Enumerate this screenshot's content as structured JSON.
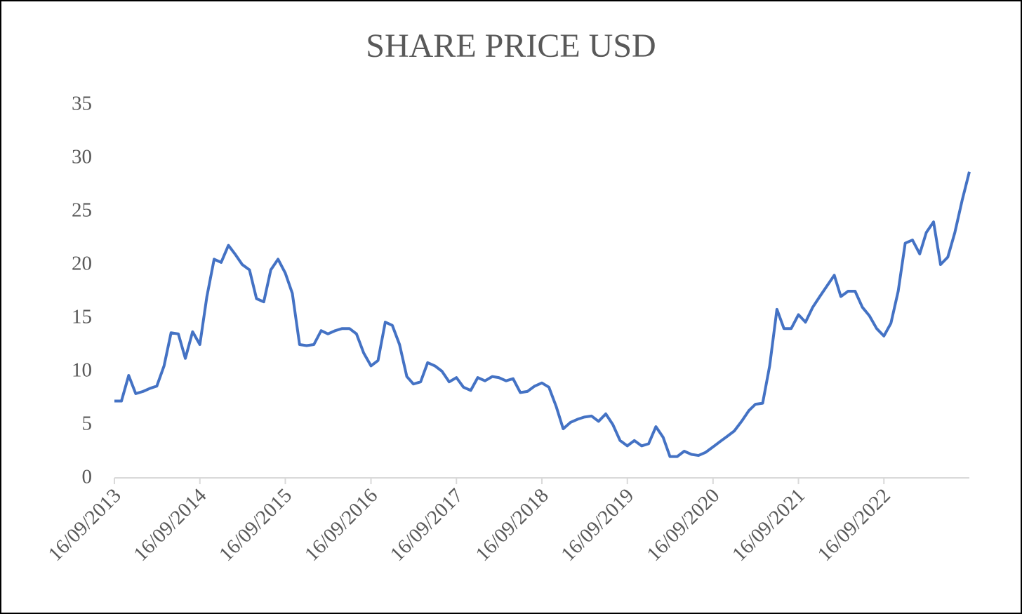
{
  "chart_data": {
    "type": "line",
    "title": "SHARE PRICE USD",
    "x": [
      "16/09/2013",
      "16/10/2013",
      "16/11/2013",
      "16/12/2013",
      "16/01/2014",
      "16/02/2014",
      "16/03/2014",
      "16/04/2014",
      "16/05/2014",
      "16/06/2014",
      "16/07/2014",
      "16/08/2014",
      "16/09/2014",
      "16/10/2014",
      "16/11/2014",
      "16/12/2014",
      "16/01/2015",
      "16/02/2015",
      "16/03/2015",
      "16/04/2015",
      "16/05/2015",
      "16/06/2015",
      "16/07/2015",
      "16/08/2015",
      "16/09/2015",
      "16/10/2015",
      "16/11/2015",
      "16/12/2015",
      "16/01/2016",
      "16/02/2016",
      "16/03/2016",
      "16/04/2016",
      "16/05/2016",
      "16/06/2016",
      "16/07/2016",
      "16/08/2016",
      "16/09/2016",
      "16/10/2016",
      "16/11/2016",
      "16/12/2016",
      "16/01/2017",
      "16/02/2017",
      "16/03/2017",
      "16/04/2017",
      "16/05/2017",
      "16/06/2017",
      "16/07/2017",
      "16/08/2017",
      "16/09/2017",
      "16/10/2017",
      "16/11/2017",
      "16/12/2017",
      "16/01/2018",
      "16/02/2018",
      "16/03/2018",
      "16/04/2018",
      "16/05/2018",
      "16/06/2018",
      "16/07/2018",
      "16/08/2018",
      "16/09/2018",
      "16/10/2018",
      "16/11/2018",
      "16/12/2018",
      "16/01/2019",
      "16/02/2019",
      "16/03/2019",
      "16/04/2019",
      "16/05/2019",
      "16/06/2019",
      "16/07/2019",
      "16/08/2019",
      "16/09/2019",
      "16/10/2019",
      "16/11/2019",
      "16/12/2019",
      "16/01/2020",
      "16/02/2020",
      "16/03/2020",
      "16/04/2020",
      "16/05/2020",
      "16/06/2020",
      "16/07/2020",
      "16/08/2020",
      "16/09/2020",
      "16/10/2020",
      "16/11/2020",
      "16/12/2020",
      "16/01/2021",
      "16/02/2021",
      "16/03/2021",
      "16/04/2021",
      "16/05/2021",
      "16/06/2021",
      "16/07/2021",
      "16/08/2021",
      "16/09/2021",
      "16/10/2021",
      "16/11/2021",
      "16/12/2021",
      "16/01/2022",
      "16/02/2022",
      "16/03/2022",
      "16/04/2022",
      "16/05/2022",
      "16/06/2022",
      "16/07/2022",
      "16/08/2022",
      "16/09/2022",
      "16/10/2022",
      "16/11/2022",
      "16/12/2022",
      "16/01/2023",
      "16/02/2023",
      "16/03/2023",
      "16/04/2023",
      "16/05/2023",
      "16/06/2023",
      "16/07/2023",
      "16/08/2023",
      "16/09/2023"
    ],
    "values": [
      7.2,
      7.2,
      9.6,
      7.9,
      8.1,
      8.4,
      8.6,
      10.5,
      13.6,
      13.5,
      11.2,
      13.7,
      12.5,
      17,
      20.5,
      20.2,
      21.8,
      20.9,
      20,
      19.5,
      16.8,
      16.5,
      19.5,
      20.5,
      19.2,
      17.3,
      12.5,
      12.4,
      12.5,
      13.8,
      13.5,
      13.8,
      14,
      14,
      13.5,
      11.7,
      10.5,
      11,
      14.6,
      14.3,
      12.5,
      9.5,
      8.8,
      9,
      10.8,
      10.5,
      10,
      9,
      9.4,
      8.5,
      8.2,
      9.4,
      9.1,
      9.5,
      9.4,
      9.1,
      9.3,
      8,
      8.1,
      8.6,
      8.9,
      8.5,
      6.7,
      4.6,
      5.2,
      5.5,
      5.7,
      5.8,
      5.3,
      6,
      5,
      3.5,
      3,
      3.5,
      3,
      3.2,
      4.8,
      3.8,
      2,
      2,
      2.5,
      2.2,
      2.1,
      2.4,
      2.9,
      3.4,
      3.9,
      4.4,
      5.3,
      6.3,
      6.9,
      7,
      10.5,
      15.8,
      14,
      14,
      15.3,
      14.6,
      16,
      17,
      18,
      19,
      17,
      17.5,
      17.5,
      16,
      15.2,
      14,
      13.3,
      14.5,
      17.5,
      22,
      22.3,
      21,
      23,
      24,
      20,
      20.7,
      23,
      26,
      28.7
    ],
    "color": "#4472c4",
    "xlim": [
      "16/09/2013",
      "16/09/2023"
    ],
    "xticks": [
      "16/09/2013",
      "16/09/2014",
      "16/09/2015",
      "16/09/2016",
      "16/09/2017",
      "16/09/2018",
      "16/09/2019",
      "16/09/2020",
      "16/09/2021",
      "16/09/2022"
    ],
    "ylim": [
      0,
      35
    ],
    "yticks": [
      0,
      5,
      10,
      15,
      20,
      25,
      30,
      35
    ]
  }
}
